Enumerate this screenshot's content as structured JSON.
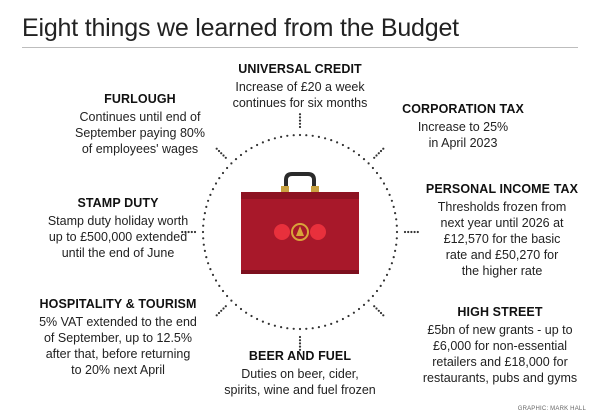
{
  "title": "Eight things we learned from the Budget",
  "items": [
    {
      "heading": "UNIVERSAL CREDIT",
      "text": "Increase of £20 a week\ncontinues for six months"
    },
    {
      "heading": "FURLOUGH",
      "text": "Continues until end of\nSeptember paying 80%\nof employees' wages"
    },
    {
      "heading": "CORPORATION TAX",
      "text": "Increase to 25%\nin April 2023"
    },
    {
      "heading": "STAMP DUTY",
      "text": "Stamp duty holiday worth\nup to £500,000 extended\nuntil the end of June"
    },
    {
      "heading": "PERSONAL INCOME TAX",
      "text": "Thresholds frozen from\nnext year until 2026 at\n£12,570 for the basic\nrate and £50,270 for\nthe higher rate"
    },
    {
      "heading": "HOSPITALITY & TOURISM",
      "text": "5% VAT extended to the end\nof September, up to 12.5%\nafter that, before returning\nto 20% next April"
    },
    {
      "heading": "HIGH STREET",
      "text": "£5bn of new grants - up to\n£6,000 for non-essential\nretailers and £18,000 for\nrestaurants, pubs and gyms"
    },
    {
      "heading": "BEER AND FUEL",
      "text": "Duties on beer, cider,\nspirits, wine and fuel frozen"
    }
  ],
  "credit": "GRAPHIC: MARK HALL",
  "colors": {
    "case": "#a8182a",
    "case_dark": "#7d0f1e",
    "badge": "#e8303c",
    "emblem": "#d9a43a",
    "dots": "#333333"
  },
  "icon": "red-budget-box"
}
